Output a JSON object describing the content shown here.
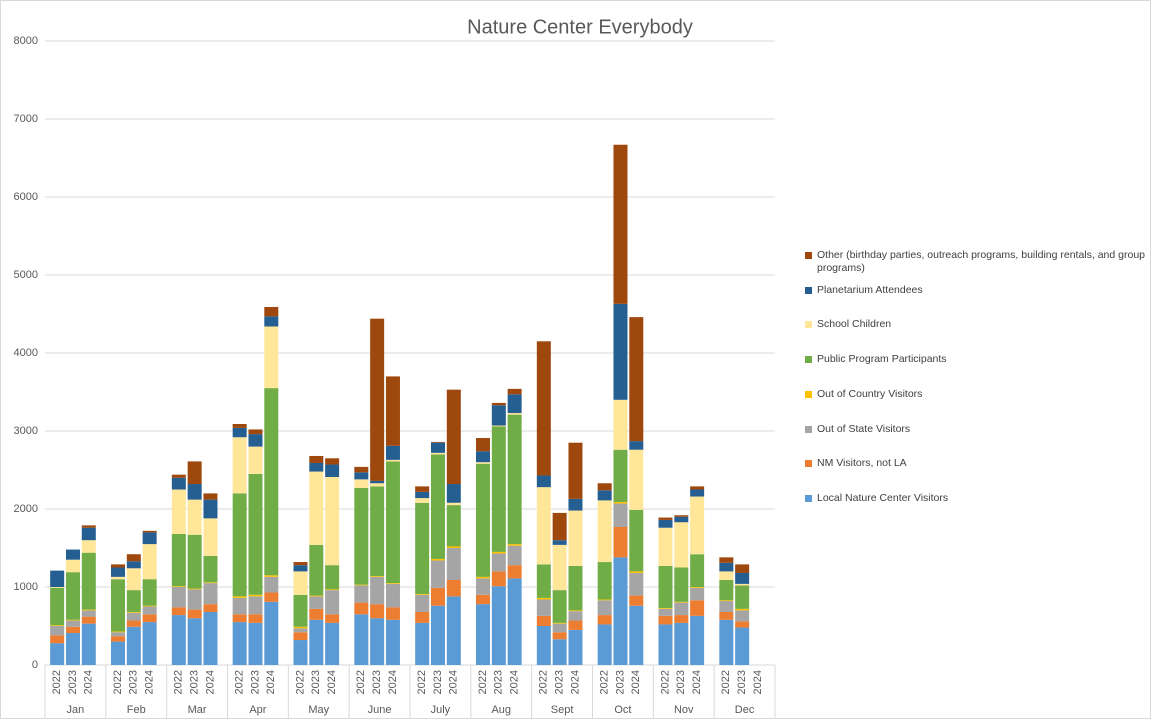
{
  "chart_data": {
    "type": "stacked_bar",
    "title": "Nature Center Everybody",
    "groups": [
      "Jan",
      "Feb",
      "Mar",
      "Apr",
      "May",
      "June",
      "July",
      "Aug",
      "Sept",
      "Oct",
      "Nov",
      "Dec"
    ],
    "categories": [
      "2022",
      "2023",
      "2024",
      "2022",
      "2023",
      "2024",
      "2022",
      "2023",
      "2024",
      "2022",
      "2023",
      "2024",
      "2022",
      "2023",
      "2024",
      "2022",
      "2023",
      "2024",
      "2022",
      "2023",
      "2024",
      "2022",
      "2023",
      "2024",
      "2022",
      "2023",
      "2024",
      "2022",
      "2023",
      "2024",
      "2022",
      "2023",
      "2024",
      "2022",
      "2023",
      "2024"
    ],
    "ylim": [
      0,
      8000
    ],
    "yticks": [
      0,
      1000,
      2000,
      3000,
      4000,
      5000,
      6000,
      7000,
      8000
    ],
    "grid": true,
    "legend": "right",
    "series": [
      {
        "name": "Local Nature Center Visitors",
        "color": "#5b9bd5",
        "values": [
          280,
          410,
          530,
          300,
          490,
          550,
          640,
          600,
          680,
          550,
          540,
          810,
          320,
          580,
          540,
          650,
          600,
          580,
          540,
          760,
          880,
          780,
          1010,
          1110,
          500,
          330,
          450,
          520,
          1380,
          760,
          520,
          540,
          630,
          580,
          480,
          null
        ]
      },
      {
        "name": "NM Visitors, not LA",
        "color": "#ed7d31",
        "values": [
          100,
          80,
          90,
          70,
          80,
          100,
          100,
          110,
          100,
          100,
          110,
          120,
          100,
          140,
          110,
          150,
          180,
          160,
          140,
          230,
          210,
          120,
          190,
          170,
          130,
          90,
          120,
          120,
          390,
          130,
          110,
          100,
          200,
          100,
          80,
          null
        ]
      },
      {
        "name": "Out of State Visitors",
        "color": "#a5a5a5",
        "values": [
          120,
          80,
          80,
          50,
          100,
          100,
          260,
          260,
          270,
          210,
          230,
          200,
          50,
          160,
          310,
          220,
          350,
          300,
          220,
          350,
          410,
          210,
          230,
          250,
          210,
          110,
          120,
          190,
          300,
          290,
          90,
          160,
          160,
          140,
          140,
          null
        ]
      },
      {
        "name": "Out of Country Visitors",
        "color": "#ffc000",
        "values": [
          10,
          10,
          10,
          10,
          10,
          10,
          10,
          10,
          10,
          20,
          20,
          20,
          20,
          10,
          10,
          10,
          10,
          10,
          10,
          20,
          20,
          20,
          20,
          20,
          20,
          10,
          10,
          10,
          20,
          20,
          10,
          10,
          10,
          10,
          20,
          null
        ]
      },
      {
        "name": "Public Program Participants",
        "color": "#70ad47",
        "values": [
          480,
          610,
          730,
          670,
          280,
          340,
          670,
          690,
          340,
          1320,
          1550,
          2400,
          410,
          650,
          310,
          1240,
          1150,
          1560,
          1170,
          1340,
          530,
          1450,
          1610,
          1660,
          430,
          420,
          570,
          480,
          670,
          790,
          540,
          440,
          420,
          260,
          300,
          null
        ]
      },
      {
        "name": "School Children",
        "color": "#ffe699",
        "values": [
          10,
          160,
          160,
          30,
          280,
          450,
          570,
          450,
          480,
          720,
          350,
          790,
          300,
          940,
          1130,
          110,
          40,
          20,
          60,
          20,
          30,
          20,
          10,
          20,
          990,
          580,
          710,
          790,
          640,
          770,
          490,
          580,
          740,
          110,
          20,
          null
        ]
      },
      {
        "name": "Planetarium Attendees",
        "color": "#255e91",
        "values": [
          210,
          130,
          160,
          120,
          90,
          150,
          150,
          200,
          240,
          120,
          160,
          130,
          80,
          110,
          160,
          90,
          30,
          180,
          80,
          130,
          240,
          140,
          260,
          240,
          150,
          60,
          150,
          130,
          1230,
          110,
          100,
          70,
          90,
          110,
          140,
          null
        ]
      },
      {
        "name": "Other (birthday parties, outreach programs, building rentals, and group programs)",
        "color": "#9e480e",
        "values": [
          0,
          0,
          30,
          40,
          90,
          20,
          40,
          290,
          80,
          50,
          60,
          120,
          40,
          90,
          80,
          70,
          2080,
          890,
          70,
          10,
          1210,
          170,
          30,
          70,
          1720,
          350,
          720,
          90,
          2040,
          1590,
          30,
          20,
          40,
          70,
          110,
          null
        ]
      }
    ]
  }
}
